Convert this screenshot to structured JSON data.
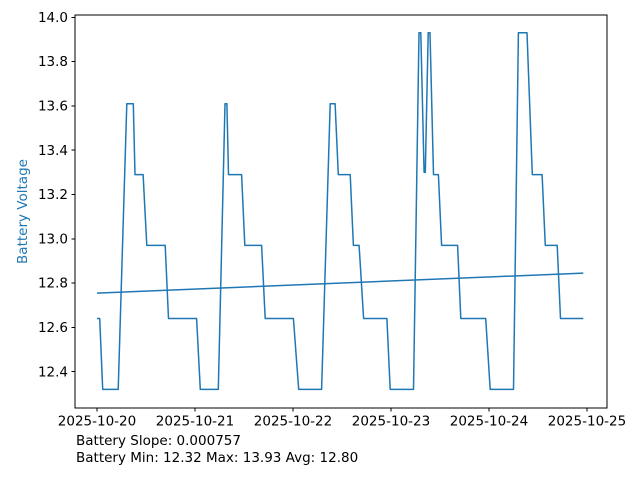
{
  "chart_data": {
    "type": "line",
    "title": "",
    "xlabel": "",
    "ylabel": "Battery Voltage",
    "axis_label_color": "#1f77b4",
    "line_color": "#1f77b4",
    "grid": false,
    "legend": "none",
    "x_unit": "hours since 2025-10-20 00:00",
    "xlim_hours": [
      -5.39,
      124.9
    ],
    "ylim": [
      12.236,
      14.0105
    ],
    "x_tick_labels": [
      "2025-10-20",
      "2025-10-21",
      "2025-10-22",
      "2025-10-23",
      "2025-10-24",
      "2025-10-25"
    ],
    "x_tick_hours": [
      0,
      24,
      48,
      72,
      96,
      120
    ],
    "y_ticks": [
      12.4,
      12.6,
      12.8,
      13.0,
      13.2,
      13.4,
      13.6,
      13.8,
      14.0
    ],
    "series": [
      {
        "name": "battery-voltage",
        "color": "#1f77b4",
        "width": 1.5,
        "points": [
          [
            0.0,
            12.64
          ],
          [
            0.66,
            12.64
          ],
          [
            1.4,
            12.32
          ],
          [
            5.2,
            12.32
          ],
          [
            7.3,
            13.61
          ],
          [
            8.9,
            13.61
          ],
          [
            9.3,
            13.29
          ],
          [
            11.3,
            13.29
          ],
          [
            12.2,
            12.97
          ],
          [
            16.7,
            12.97
          ],
          [
            17.5,
            12.64
          ],
          [
            24.4,
            12.64
          ],
          [
            25.3,
            12.32
          ],
          [
            29.7,
            12.32
          ],
          [
            31.35,
            13.61
          ],
          [
            31.8,
            13.61
          ],
          [
            32.2,
            13.29
          ],
          [
            35.4,
            13.29
          ],
          [
            36.2,
            12.97
          ],
          [
            40.3,
            12.97
          ],
          [
            41.2,
            12.64
          ],
          [
            48.1,
            12.64
          ],
          [
            49.4,
            12.32
          ],
          [
            55.0,
            12.32
          ],
          [
            57.1,
            13.61
          ],
          [
            58.3,
            13.61
          ],
          [
            59.1,
            13.29
          ],
          [
            62.0,
            13.29
          ],
          [
            62.8,
            12.97
          ],
          [
            64.2,
            12.97
          ],
          [
            65.3,
            12.64
          ],
          [
            71.0,
            12.64
          ],
          [
            71.8,
            12.32
          ],
          [
            77.5,
            12.32
          ],
          [
            78.85,
            13.93
          ],
          [
            79.3,
            13.93
          ],
          [
            80.1,
            13.3
          ],
          [
            80.4,
            13.3
          ],
          [
            81.1,
            13.93
          ],
          [
            81.55,
            13.93
          ],
          [
            82.4,
            13.29
          ],
          [
            83.6,
            13.29
          ],
          [
            84.4,
            12.97
          ],
          [
            88.3,
            12.97
          ],
          [
            89.1,
            12.64
          ],
          [
            95.2,
            12.64
          ],
          [
            96.3,
            12.32
          ],
          [
            102.0,
            12.32
          ],
          [
            103.2,
            13.93
          ],
          [
            105.3,
            13.93
          ],
          [
            106.6,
            13.29
          ],
          [
            109.0,
            13.29
          ],
          [
            109.8,
            12.97
          ],
          [
            112.7,
            12.97
          ],
          [
            113.5,
            12.64
          ],
          [
            119.1,
            12.64
          ]
        ]
      },
      {
        "name": "battery-trend",
        "color": "#1f77b4",
        "width": 1.5,
        "points": [
          [
            0.0,
            12.755
          ],
          [
            119.1,
            12.845
          ]
        ]
      }
    ],
    "stats": {
      "slope": "0.000757",
      "min": "12.32",
      "max": "13.93",
      "avg": "12.80"
    },
    "annotations": [
      "Battery Slope: 0.000757",
      "Battery Min: 12.32 Max: 13.93 Avg: 12.80"
    ]
  }
}
